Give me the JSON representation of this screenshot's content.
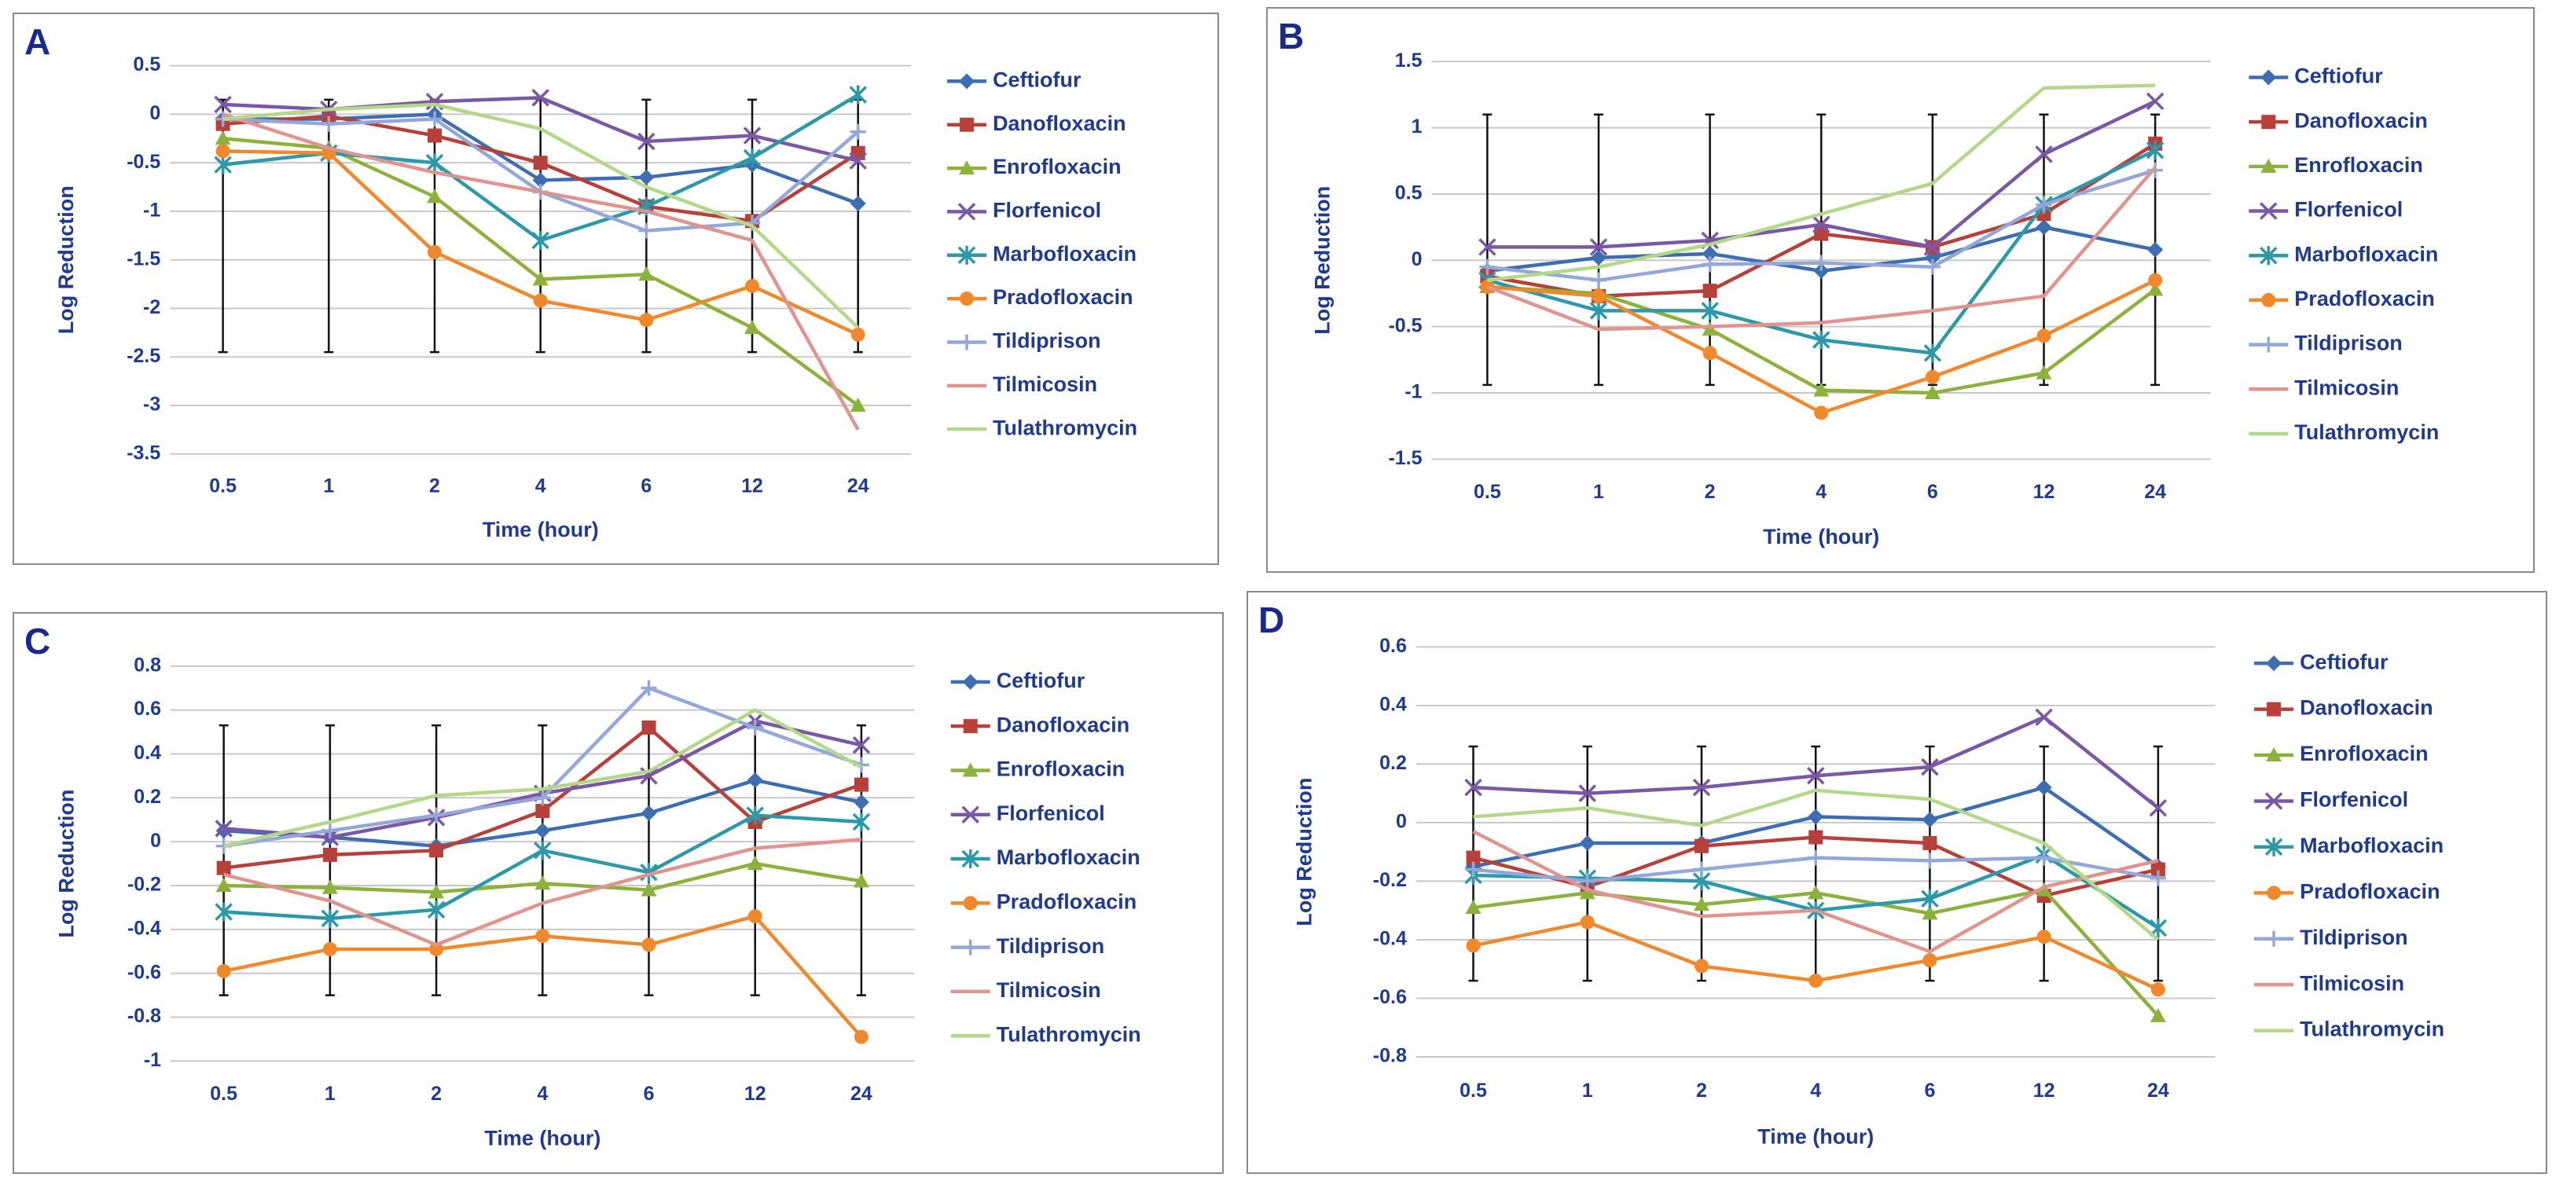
{
  "chart_data": [
    {
      "type": "line",
      "label": "A",
      "xlabel": "Time (hour)",
      "ylabel": "Log Reduction",
      "grid": true,
      "legend": "right",
      "categories": [
        "0.5",
        "1",
        "2",
        "4",
        "6",
        "12",
        "24"
      ],
      "ylim": [
        -3.5,
        0.5
      ],
      "yticks": [
        0.5,
        0,
        -0.5,
        -1,
        -1.5,
        -2,
        -2.5,
        -3,
        -3.5
      ],
      "error_bars": {
        "values": [
          -1.15,
          -1.15,
          -1.15,
          -1.15,
          -1.15,
          -1.15,
          -1.15
        ],
        "errors": [
          1.3,
          1.3,
          1.3,
          1.3,
          1.3,
          1.3,
          1.3
        ]
      },
      "series": [
        {
          "name": "Ceftiofur",
          "color": "#3d6eb0",
          "marker": "diamond",
          "values": [
            -0.05,
            -0.05,
            0.0,
            -0.68,
            -0.65,
            -0.52,
            -0.92
          ]
        },
        {
          "name": "Danofloxacin",
          "color": "#b8403b",
          "marker": "square",
          "values": [
            -0.1,
            -0.02,
            -0.22,
            -0.5,
            -0.95,
            -1.1,
            -0.4
          ]
        },
        {
          "name": "Enrofloxacin",
          "color": "#8db23c",
          "marker": "triangle",
          "values": [
            -0.25,
            -0.35,
            -0.85,
            -1.7,
            -1.65,
            -2.2,
            -3.0
          ]
        },
        {
          "name": "Florfenicol",
          "color": "#7a58a5",
          "marker": "x",
          "values": [
            0.1,
            0.05,
            0.13,
            0.17,
            -0.28,
            -0.22,
            -0.48
          ]
        },
        {
          "name": "Marbofloxacin",
          "color": "#2d99a8",
          "marker": "asterisk",
          "values": [
            -0.52,
            -0.4,
            -0.5,
            -1.3,
            -0.95,
            -0.45,
            0.2
          ]
        },
        {
          "name": "Pradofloxacin",
          "color": "#ef892b",
          "marker": "circle",
          "values": [
            -0.38,
            -0.4,
            -1.42,
            -1.92,
            -2.12,
            -1.77,
            -2.27
          ]
        },
        {
          "name": "Tildiprison",
          "color": "#93a8d8",
          "marker": "plus",
          "values": [
            -0.05,
            -0.1,
            -0.05,
            -0.8,
            -1.2,
            -1.12,
            -0.18
          ]
        },
        {
          "name": "Tilmicosin",
          "color": "#df948f",
          "marker": "none",
          "values": [
            0.0,
            -0.35,
            -0.6,
            -0.8,
            -1.0,
            -1.3,
            -3.25
          ]
        },
        {
          "name": "Tulathromycin",
          "color": "#b4d889",
          "marker": "none",
          "values": [
            -0.05,
            0.05,
            0.1,
            -0.15,
            -0.75,
            -1.15,
            -2.2
          ]
        }
      ]
    },
    {
      "type": "line",
      "label": "B",
      "xlabel": "Time (hour)",
      "ylabel": "Log Reduction",
      "grid": true,
      "legend": "right",
      "categories": [
        "0.5",
        "1",
        "2",
        "4",
        "6",
        "12",
        "24"
      ],
      "ylim": [
        -1.5,
        1.5
      ],
      "yticks": [
        1.5,
        1,
        0.5,
        0,
        -0.5,
        -1,
        -1.5
      ],
      "error_bars": {
        "values": [
          0.08,
          0.08,
          0.08,
          0.08,
          0.08,
          0.08,
          0.08
        ],
        "errors": [
          1.02,
          1.02,
          1.02,
          1.02,
          1.02,
          1.02,
          1.02
        ]
      },
      "series": [
        {
          "name": "Ceftiofur",
          "color": "#3d6eb0",
          "marker": "diamond",
          "values": [
            -0.08,
            0.02,
            0.05,
            -0.08,
            0.02,
            0.25,
            0.08
          ]
        },
        {
          "name": "Danofloxacin",
          "color": "#b8403b",
          "marker": "square",
          "values": [
            -0.12,
            -0.27,
            -0.23,
            0.2,
            0.1,
            0.35,
            0.88
          ]
        },
        {
          "name": "Enrofloxacin",
          "color": "#8db23c",
          "marker": "triangle",
          "values": [
            -0.2,
            -0.25,
            -0.52,
            -0.98,
            -1.0,
            -0.85,
            -0.22
          ]
        },
        {
          "name": "Florfenicol",
          "color": "#7a58a5",
          "marker": "x",
          "values": [
            0.1,
            0.1,
            0.15,
            0.27,
            0.1,
            0.8,
            1.2
          ]
        },
        {
          "name": "Marbofloxacin",
          "color": "#2d99a8",
          "marker": "asterisk",
          "values": [
            -0.15,
            -0.38,
            -0.38,
            -0.6,
            -0.7,
            0.42,
            0.83
          ]
        },
        {
          "name": "Pradofloxacin",
          "color": "#ef892b",
          "marker": "circle",
          "values": [
            -0.2,
            -0.27,
            -0.7,
            -1.15,
            -0.88,
            -0.57,
            -0.15
          ]
        },
        {
          "name": "Tildiprison",
          "color": "#93a8d8",
          "marker": "plus",
          "values": [
            -0.05,
            -0.15,
            -0.03,
            -0.02,
            -0.05,
            0.42,
            0.68
          ]
        },
        {
          "name": "Tilmicosin",
          "color": "#df948f",
          "marker": "none",
          "values": [
            -0.2,
            -0.52,
            -0.5,
            -0.47,
            -0.38,
            -0.27,
            0.7
          ]
        },
        {
          "name": "Tulathromycin",
          "color": "#b4d889",
          "marker": "none",
          "values": [
            -0.15,
            -0.05,
            0.12,
            0.35,
            0.58,
            1.3,
            1.32
          ]
        }
      ]
    },
    {
      "type": "line",
      "label": "C",
      "xlabel": "Time (hour)",
      "ylabel": "Log Reduction",
      "grid": true,
      "legend": "right",
      "categories": [
        "0.5",
        "1",
        "2",
        "4",
        "6",
        "12",
        "24"
      ],
      "ylim": [
        -1,
        0.8
      ],
      "yticks": [
        0.8,
        0.6,
        0.4,
        0.2,
        0,
        -0.2,
        -0.4,
        -0.6,
        -0.8,
        -1
      ],
      "error_bars": {
        "values": [
          -0.085,
          -0.085,
          -0.085,
          -0.085,
          -0.085,
          -0.085,
          -0.085
        ],
        "errors": [
          0.615,
          0.615,
          0.615,
          0.615,
          0.615,
          0.615,
          0.615
        ]
      },
      "series": [
        {
          "name": "Ceftiofur",
          "color": "#3d6eb0",
          "marker": "diamond",
          "values": [
            0.05,
            0.02,
            -0.02,
            0.05,
            0.13,
            0.28,
            0.18
          ]
        },
        {
          "name": "Danofloxacin",
          "color": "#b8403b",
          "marker": "square",
          "values": [
            -0.12,
            -0.06,
            -0.04,
            0.14,
            0.52,
            0.09,
            0.26
          ]
        },
        {
          "name": "Enrofloxacin",
          "color": "#8db23c",
          "marker": "triangle",
          "values": [
            -0.2,
            -0.21,
            -0.23,
            -0.19,
            -0.22,
            -0.1,
            -0.18
          ]
        },
        {
          "name": "Florfenicol",
          "color": "#7a58a5",
          "marker": "x",
          "values": [
            0.06,
            0.02,
            0.11,
            0.22,
            0.3,
            0.55,
            0.44
          ]
        },
        {
          "name": "Marbofloxacin",
          "color": "#2d99a8",
          "marker": "asterisk",
          "values": [
            -0.32,
            -0.35,
            -0.31,
            -0.04,
            -0.14,
            0.12,
            0.09
          ]
        },
        {
          "name": "Pradofloxacin",
          "color": "#ef892b",
          "marker": "circle",
          "values": [
            -0.59,
            -0.49,
            -0.49,
            -0.43,
            -0.47,
            -0.34,
            -0.89
          ]
        },
        {
          "name": "Tildiprison",
          "color": "#93a8d8",
          "marker": "plus",
          "values": [
            -0.02,
            0.05,
            0.12,
            0.2,
            0.7,
            0.52,
            0.35
          ]
        },
        {
          "name": "Tilmicosin",
          "color": "#df948f",
          "marker": "none",
          "values": [
            -0.15,
            -0.27,
            -0.47,
            -0.28,
            -0.15,
            -0.03,
            0.01
          ]
        },
        {
          "name": "Tulathromycin",
          "color": "#b4d889",
          "marker": "none",
          "values": [
            -0.02,
            0.09,
            0.21,
            0.24,
            0.32,
            0.6,
            0.34
          ]
        }
      ]
    },
    {
      "type": "line",
      "label": "D",
      "xlabel": "Time (hour)",
      "ylabel": "Log Reduction",
      "grid": true,
      "legend": "right",
      "categories": [
        "0.5",
        "1",
        "2",
        "4",
        "6",
        "12",
        "24"
      ],
      "ylim": [
        -0.8,
        0.6
      ],
      "yticks": [
        0.6,
        0.4,
        0.2,
        0,
        -0.2,
        -0.4,
        -0.6,
        -0.8
      ],
      "error_bars": {
        "values": [
          -0.14,
          -0.14,
          -0.14,
          -0.14,
          -0.14,
          -0.14,
          -0.14
        ],
        "errors": [
          0.4,
          0.4,
          0.4,
          0.4,
          0.4,
          0.4,
          0.4
        ]
      },
      "series": [
        {
          "name": "Ceftiofur",
          "color": "#3d6eb0",
          "marker": "diamond",
          "values": [
            -0.15,
            -0.07,
            -0.07,
            0.02,
            0.01,
            0.12,
            -0.15
          ]
        },
        {
          "name": "Danofloxacin",
          "color": "#b8403b",
          "marker": "square",
          "values": [
            -0.12,
            -0.22,
            -0.08,
            -0.05,
            -0.07,
            -0.25,
            -0.16
          ]
        },
        {
          "name": "Enrofloxacin",
          "color": "#8db23c",
          "marker": "triangle",
          "values": [
            -0.29,
            -0.24,
            -0.28,
            -0.24,
            -0.31,
            -0.23,
            -0.66
          ]
        },
        {
          "name": "Florfenicol",
          "color": "#7a58a5",
          "marker": "x",
          "values": [
            0.12,
            0.1,
            0.12,
            0.16,
            0.19,
            0.36,
            0.05
          ]
        },
        {
          "name": "Marbofloxacin",
          "color": "#2d99a8",
          "marker": "asterisk",
          "values": [
            -0.18,
            -0.19,
            -0.2,
            -0.3,
            -0.26,
            -0.11,
            -0.36
          ]
        },
        {
          "name": "Pradofloxacin",
          "color": "#ef892b",
          "marker": "circle",
          "values": [
            -0.42,
            -0.34,
            -0.49,
            -0.54,
            -0.47,
            -0.39,
            -0.57
          ]
        },
        {
          "name": "Tildiprison",
          "color": "#93a8d8",
          "marker": "plus",
          "values": [
            -0.16,
            -0.2,
            -0.16,
            -0.12,
            -0.13,
            -0.12,
            -0.19
          ]
        },
        {
          "name": "Tilmicosin",
          "color": "#df948f",
          "marker": "none",
          "values": [
            -0.03,
            -0.23,
            -0.32,
            -0.3,
            -0.44,
            -0.22,
            -0.13
          ]
        },
        {
          "name": "Tulathromycin",
          "color": "#b4d889",
          "marker": "none",
          "values": [
            0.02,
            0.05,
            -0.01,
            0.11,
            0.08,
            -0.07,
            -0.4
          ]
        }
      ]
    }
  ]
}
